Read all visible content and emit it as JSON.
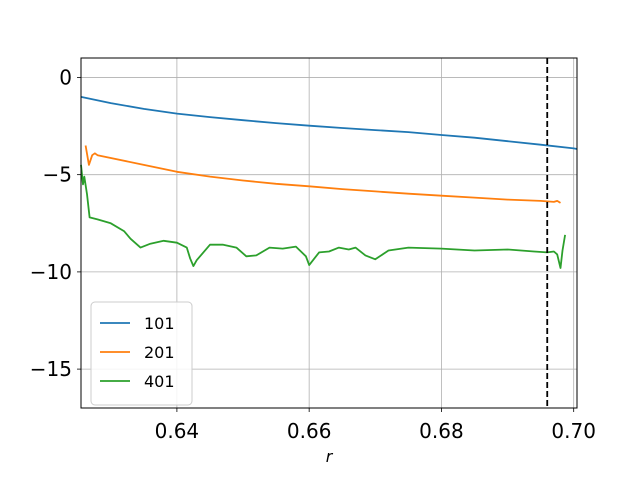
{
  "chart_data": {
    "type": "line",
    "title": "",
    "xlabel": "r",
    "ylabel": "",
    "xlim": [
      0.6255,
      0.7005
    ],
    "ylim": [
      -17,
      1
    ],
    "xticks": [
      0.64,
      0.66,
      0.68,
      0.7
    ],
    "xtick_labels": [
      "0.64",
      "0.66",
      "0.68",
      "0.70"
    ],
    "yticks": [
      0,
      -5,
      -10,
      -15
    ],
    "ytick_labels": [
      "0",
      "−5",
      "−10",
      "−15"
    ],
    "grid": true,
    "legend_position": "lower-left",
    "vline": {
      "x": 0.696,
      "style": "dashed",
      "color": "#000000"
    },
    "series": [
      {
        "name": "101",
        "color": "#1f77b4",
        "x": [
          0.6255,
          0.63,
          0.635,
          0.64,
          0.645,
          0.65,
          0.655,
          0.66,
          0.665,
          0.67,
          0.675,
          0.68,
          0.685,
          0.69,
          0.695,
          0.7,
          0.7005
        ],
        "y": [
          -1.0,
          -1.32,
          -1.62,
          -1.86,
          -2.04,
          -2.2,
          -2.35,
          -2.48,
          -2.6,
          -2.71,
          -2.81,
          -2.96,
          -3.1,
          -3.28,
          -3.46,
          -3.65,
          -3.68
        ]
      },
      {
        "name": "201",
        "color": "#ff7f0e",
        "x": [
          0.6262,
          0.6265,
          0.6267,
          0.6272,
          0.6276,
          0.628,
          0.635,
          0.64,
          0.645,
          0.65,
          0.655,
          0.66,
          0.665,
          0.67,
          0.675,
          0.68,
          0.685,
          0.69,
          0.695,
          0.697,
          0.6975,
          0.698
        ],
        "y": [
          -3.5,
          -4.1,
          -4.5,
          -4.0,
          -3.9,
          -4.0,
          -4.5,
          -4.85,
          -5.1,
          -5.3,
          -5.47,
          -5.6,
          -5.74,
          -5.86,
          -5.98,
          -6.08,
          -6.18,
          -6.28,
          -6.35,
          -6.4,
          -6.35,
          -6.45
        ]
      },
      {
        "name": "401",
        "color": "#2ca02c",
        "x": [
          0.6255,
          0.6258,
          0.626,
          0.6264,
          0.6268,
          0.628,
          0.63,
          0.632,
          0.633,
          0.6345,
          0.636,
          0.638,
          0.64,
          0.6415,
          0.642,
          0.6425,
          0.643,
          0.645,
          0.647,
          0.649,
          0.6505,
          0.652,
          0.654,
          0.656,
          0.658,
          0.6595,
          0.66,
          0.6615,
          0.663,
          0.6645,
          0.666,
          0.667,
          0.6685,
          0.67,
          0.672,
          0.675,
          0.68,
          0.685,
          0.69,
          0.694,
          0.696,
          0.697,
          0.6975,
          0.698,
          0.6983,
          0.6987
        ],
        "y": [
          -4.5,
          -5.5,
          -5.1,
          -6.0,
          -7.2,
          -7.3,
          -7.5,
          -7.9,
          -8.3,
          -8.75,
          -8.55,
          -8.4,
          -8.5,
          -8.75,
          -9.3,
          -9.7,
          -9.4,
          -8.6,
          -8.6,
          -8.75,
          -9.2,
          -9.15,
          -8.75,
          -8.8,
          -8.7,
          -9.2,
          -9.65,
          -9.0,
          -8.95,
          -8.75,
          -8.85,
          -8.75,
          -9.15,
          -9.35,
          -8.9,
          -8.75,
          -8.8,
          -8.9,
          -8.85,
          -8.95,
          -9.0,
          -8.95,
          -9.1,
          -9.8,
          -8.9,
          -8.1
        ]
      }
    ]
  }
}
